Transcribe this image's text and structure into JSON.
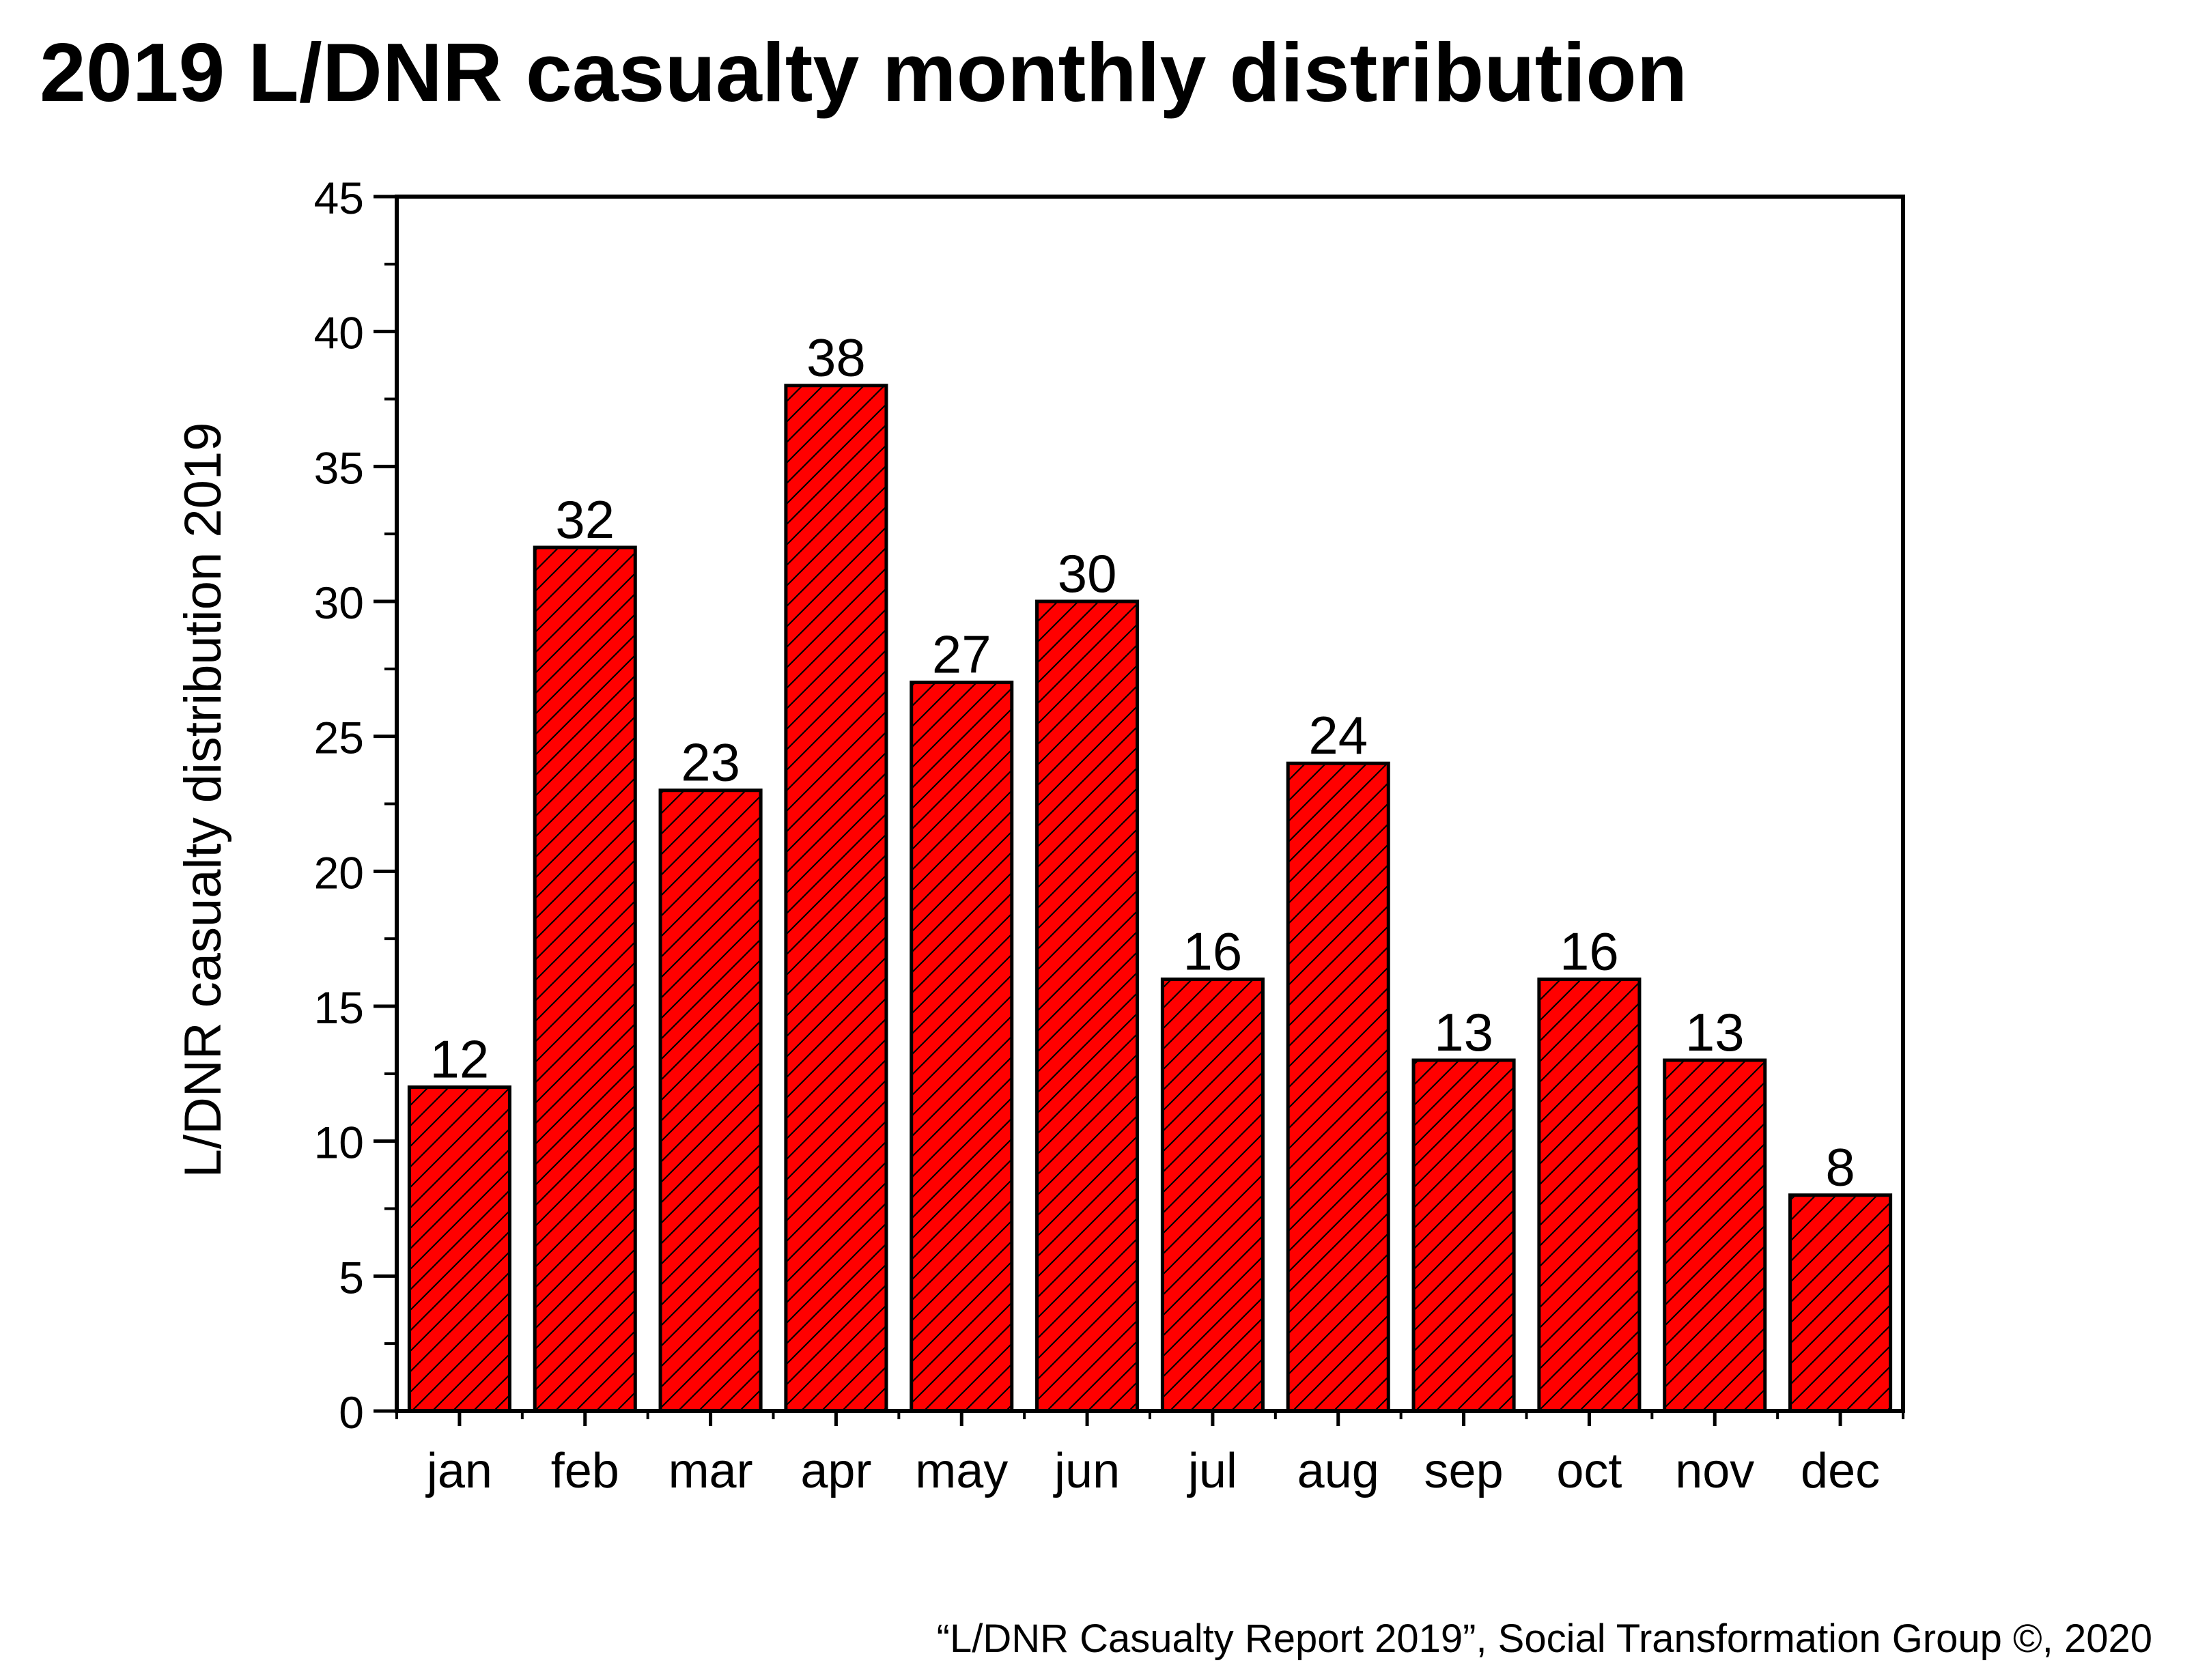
{
  "chart_data": {
    "type": "bar",
    "title": "2019 L/DNR casualty monthly distribution",
    "xlabel": "",
    "ylabel": "L/DNR casualty distribution 2019",
    "categories": [
      "jan",
      "feb",
      "mar",
      "apr",
      "may",
      "jun",
      "jul",
      "aug",
      "sep",
      "oct",
      "nov",
      "dec"
    ],
    "values": [
      12,
      32,
      23,
      38,
      27,
      30,
      16,
      24,
      13,
      16,
      13,
      8
    ],
    "ylim": [
      0,
      45
    ],
    "yticks": [
      0,
      5,
      10,
      15,
      20,
      25,
      30,
      35,
      40,
      45
    ],
    "data_labels": true,
    "grid": false,
    "bar_color": "#ff0000",
    "bar_pattern": "diagonal-hatch",
    "footer": "“L/DNR Casualty Report 2019”, Social Transformation Group ©, 2020"
  }
}
